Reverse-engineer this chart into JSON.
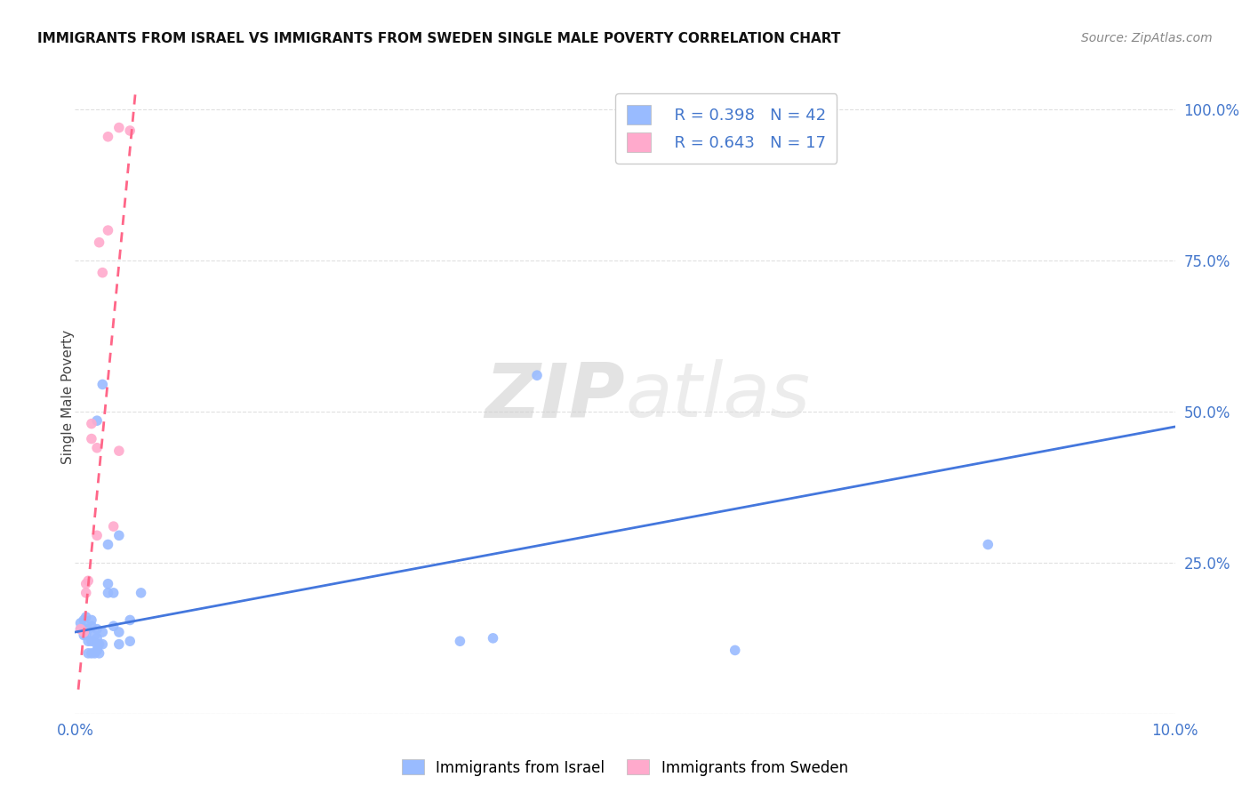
{
  "title": "IMMIGRANTS FROM ISRAEL VS IMMIGRANTS FROM SWEDEN SINGLE MALE POVERTY CORRELATION CHART",
  "source": "Source: ZipAtlas.com",
  "ylabel": "Single Male Poverty",
  "israel_color": "#99bbff",
  "sweden_color": "#ffaacc",
  "israel_line_color": "#4477dd",
  "sweden_line_color": "#ff6688",
  "background_color": "#ffffff",
  "grid_color": "#e0e0e0",
  "israel_x": [
    0.0005,
    0.0005,
    0.0008,
    0.0008,
    0.001,
    0.001,
    0.001,
    0.0012,
    0.0012,
    0.0012,
    0.0015,
    0.0015,
    0.0015,
    0.0015,
    0.0018,
    0.0018,
    0.002,
    0.002,
    0.002,
    0.002,
    0.0022,
    0.0022,
    0.0025,
    0.0025,
    0.003,
    0.003,
    0.003,
    0.0035,
    0.0035,
    0.004,
    0.004,
    0.004,
    0.005,
    0.005,
    0.006,
    0.035,
    0.038,
    0.042,
    0.06,
    0.083,
    0.002,
    0.0025
  ],
  "israel_y": [
    0.14,
    0.15,
    0.13,
    0.155,
    0.13,
    0.14,
    0.16,
    0.1,
    0.12,
    0.14,
    0.1,
    0.12,
    0.145,
    0.155,
    0.1,
    0.13,
    0.105,
    0.115,
    0.125,
    0.14,
    0.1,
    0.115,
    0.115,
    0.135,
    0.2,
    0.215,
    0.28,
    0.145,
    0.2,
    0.115,
    0.135,
    0.295,
    0.12,
    0.155,
    0.2,
    0.12,
    0.125,
    0.56,
    0.105,
    0.28,
    0.485,
    0.545
  ],
  "sweden_x": [
    0.0005,
    0.0008,
    0.001,
    0.001,
    0.0012,
    0.0015,
    0.0015,
    0.002,
    0.002,
    0.0022,
    0.0025,
    0.003,
    0.003,
    0.0035,
    0.004,
    0.004,
    0.005
  ],
  "sweden_y": [
    0.14,
    0.135,
    0.2,
    0.215,
    0.22,
    0.455,
    0.48,
    0.295,
    0.44,
    0.78,
    0.73,
    0.8,
    0.955,
    0.31,
    0.435,
    0.97,
    0.965
  ],
  "israel_trend_x": [
    0.0,
    0.1
  ],
  "israel_trend_y": [
    0.135,
    0.475
  ],
  "sweden_trend_x": [
    0.0003,
    0.0055
  ],
  "sweden_trend_y": [
    0.04,
    1.03
  ],
  "xlim": [
    0.0,
    0.1
  ],
  "ylim": [
    0.0,
    1.05
  ],
  "xtick_positions": [
    0.0,
    0.01,
    0.02,
    0.03,
    0.04,
    0.05,
    0.06,
    0.07,
    0.08,
    0.09,
    0.1
  ],
  "ytick_positions": [
    0.0,
    0.25,
    0.5,
    0.75,
    1.0
  ],
  "ytick_labels_right": [
    "",
    "25.0%",
    "50.0%",
    "75.0%",
    "100.0%"
  ]
}
